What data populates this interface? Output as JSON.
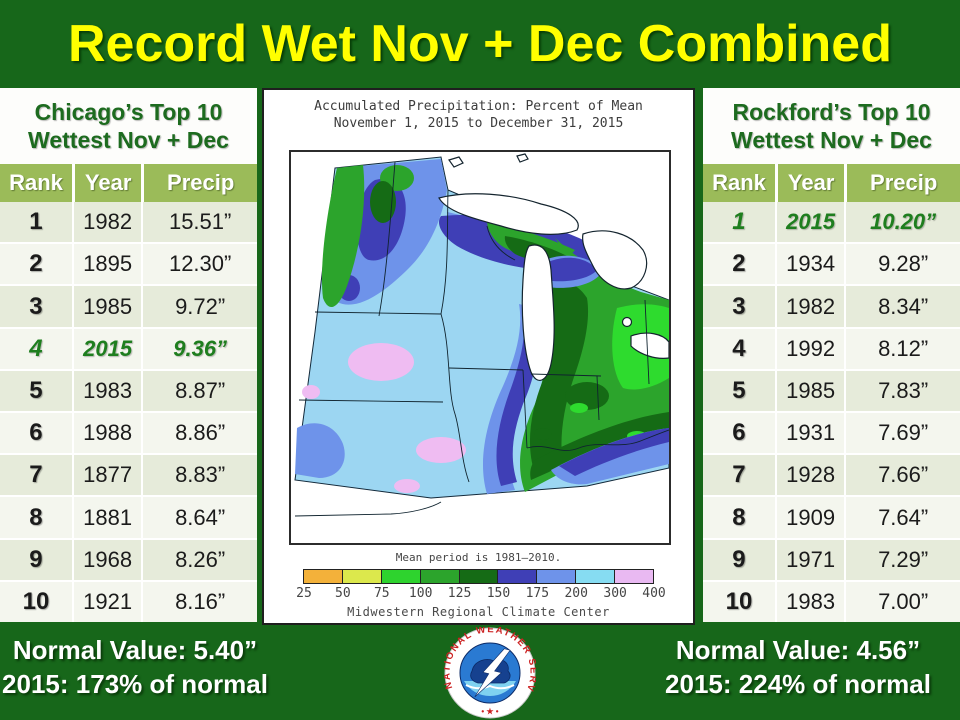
{
  "title": "Record Wet Nov + Dec Combined",
  "left_table": {
    "title_line1": "Chicago’s Top 10",
    "title_line2": "Wettest Nov + Dec",
    "columns": [
      "Rank",
      "Year",
      "Precip"
    ],
    "rows": [
      {
        "rank": "1",
        "year": "1982",
        "precip": "15.51”",
        "highlight": false
      },
      {
        "rank": "2",
        "year": "1895",
        "precip": "12.30”",
        "highlight": false
      },
      {
        "rank": "3",
        "year": "1985",
        "precip": "9.72”",
        "highlight": false
      },
      {
        "rank": "4",
        "year": "2015",
        "precip": "9.36”",
        "highlight": true
      },
      {
        "rank": "5",
        "year": "1983",
        "precip": "8.87”",
        "highlight": false
      },
      {
        "rank": "6",
        "year": "1988",
        "precip": "8.86”",
        "highlight": false
      },
      {
        "rank": "7",
        "year": "1877",
        "precip": "8.83”",
        "highlight": false
      },
      {
        "rank": "8",
        "year": "1881",
        "precip": "8.64”",
        "highlight": false
      },
      {
        "rank": "9",
        "year": "1968",
        "precip": "8.26”",
        "highlight": false
      },
      {
        "rank": "10",
        "year": "1921",
        "precip": "8.16”",
        "highlight": false
      }
    ]
  },
  "right_table": {
    "title_line1": "Rockford’s Top 10",
    "title_line2": "Wettest Nov + Dec",
    "columns": [
      "Rank",
      "Year",
      "Precip"
    ],
    "rows": [
      {
        "rank": "1",
        "year": "2015",
        "precip": "10.20”",
        "highlight": true
      },
      {
        "rank": "2",
        "year": "1934",
        "precip": "9.28”",
        "highlight": false
      },
      {
        "rank": "3",
        "year": "1982",
        "precip": "8.34”",
        "highlight": false
      },
      {
        "rank": "4",
        "year": "1992",
        "precip": "8.12”",
        "highlight": false
      },
      {
        "rank": "5",
        "year": "1985",
        "precip": "7.83”",
        "highlight": false
      },
      {
        "rank": "6",
        "year": "1931",
        "precip": "7.69”",
        "highlight": false
      },
      {
        "rank": "7",
        "year": "1928",
        "precip": "7.66”",
        "highlight": false
      },
      {
        "rank": "8",
        "year": "1909",
        "precip": "7.64”",
        "highlight": false
      },
      {
        "rank": "9",
        "year": "1971",
        "precip": "7.29”",
        "highlight": false
      },
      {
        "rank": "10",
        "year": "1983",
        "precip": "7.00”",
        "highlight": false
      }
    ]
  },
  "map": {
    "title_line1": "Accumulated Precipitation: Percent of Mean",
    "title_line2": "November 1, 2015 to December 31, 2015",
    "mean_period_note": "Mean period is 1981–2010.",
    "credit": "Midwestern Regional Climate Center",
    "legend": {
      "tick_labels": [
        "25",
        "50",
        "75",
        "100",
        "125",
        "150",
        "175",
        "200",
        "300",
        "400"
      ],
      "segment_colors": [
        "#F3B13A",
        "#DCE84C",
        "#2ED32E",
        "#2CA42C",
        "#156B15",
        "#3F3FB6",
        "#6E93EA",
        "#86DCF2",
        "#E9B9F2"
      ]
    }
  },
  "footer": {
    "left_line1": "Normal Value: 5.40”",
    "left_line2": "2015: 173% of normal",
    "right_line1": "Normal Value: 4.56”",
    "right_line2": "2015: 224% of normal",
    "logo_text": "NATIONAL WEATHER SERVICE",
    "logo_stars": "• ★ •"
  },
  "colors": {
    "background_green": "#17671A",
    "title_yellow": "#FFFF00",
    "table_header_green": "#9BBB59",
    "highlight_green": "#1E7E1E"
  },
  "chart_data": [
    {
      "type": "table",
      "title": "Chicago’s Top 10 Wettest Nov + Dec",
      "columns": [
        "Rank",
        "Year",
        "Precip (inches)"
      ],
      "rows": [
        [
          1,
          1982,
          15.51
        ],
        [
          2,
          1895,
          12.3
        ],
        [
          3,
          1985,
          9.72
        ],
        [
          4,
          2015,
          9.36
        ],
        [
          5,
          1983,
          8.87
        ],
        [
          6,
          1988,
          8.86
        ],
        [
          7,
          1877,
          8.83
        ],
        [
          8,
          1881,
          8.64
        ],
        [
          9,
          1968,
          8.26
        ],
        [
          10,
          1921,
          8.16
        ]
      ],
      "note": "Normal Value: 5.40 in; 2015 was 173% of normal; 2015 row highlighted"
    },
    {
      "type": "table",
      "title": "Rockford’s Top 10 Wettest Nov + Dec",
      "columns": [
        "Rank",
        "Year",
        "Precip (inches)"
      ],
      "rows": [
        [
          1,
          2015,
          10.2
        ],
        [
          2,
          1934,
          9.28
        ],
        [
          3,
          1982,
          8.34
        ],
        [
          4,
          1992,
          8.12
        ],
        [
          5,
          1985,
          7.83
        ],
        [
          6,
          1931,
          7.69
        ],
        [
          7,
          1928,
          7.66
        ],
        [
          8,
          1909,
          7.64
        ],
        [
          9,
          1971,
          7.29
        ],
        [
          10,
          1983,
          7.0
        ]
      ],
      "note": "Normal Value: 4.56 in; 2015 was 224% of normal; 2015 row highlighted"
    },
    {
      "type": "heatmap",
      "title": "Accumulated Precipitation: Percent of Mean, November 1, 2015 to December 31, 2015 (Midwest region map)",
      "legend_bins_percent": [
        25,
        50,
        75,
        100,
        125,
        150,
        175,
        200,
        300,
        400
      ],
      "legend_colors": [
        "#F3B13A",
        "#DCE84C",
        "#2ED32E",
        "#2CA42C",
        "#156B15",
        "#3F3FB6",
        "#6E93EA",
        "#86DCF2",
        "#E9B9F2"
      ],
      "note": "Mean period is 1981–2010; most of MN/IA/MO/IL shaded 200–300%, local 300–400% pockets in S Minnesota and Missouri, 150–200% bands in N Minnesota and along IL/IN border, 100–150% across Lower Michigan/Indiana/Kentucky, 75–100% over Ohio"
    }
  ]
}
